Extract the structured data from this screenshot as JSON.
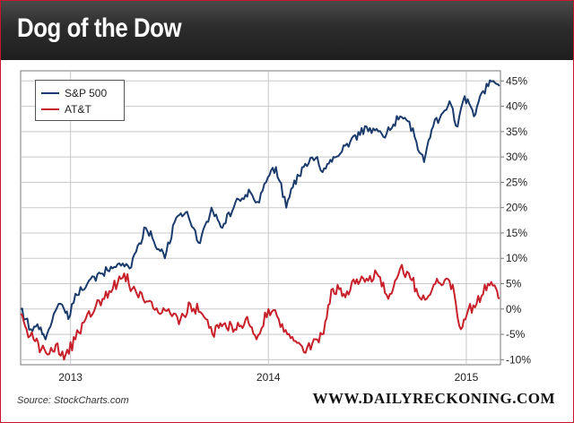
{
  "header": {
    "title": "Dog of the Dow"
  },
  "footer": {
    "source": "Source: StockCharts.com",
    "brand": "WWW.DAILYRECKONING.COM"
  },
  "colors": {
    "sp500": "#1a3b6b",
    "att": "#c8202a",
    "header_bg": "#262626",
    "frame": "#c9162b"
  },
  "chart_data": {
    "type": "line",
    "title": "Dog of the Dow",
    "xlabel": "",
    "ylabel": "",
    "x_ticks": [
      "2013",
      "2014",
      "2015"
    ],
    "y_ticks": [
      "45%",
      "40%",
      "35%",
      "30%",
      "25%",
      "20%",
      "15%",
      "10%",
      "5%",
      "0%",
      "-5%",
      "-10%"
    ],
    "ylim": [
      -11,
      47
    ],
    "xlim": [
      "2012-10-01",
      "2015-03-05"
    ],
    "grid": true,
    "legend_position": "top-left",
    "series": [
      {
        "name": "S&P 500",
        "color": "#1a3b6b",
        "points": [
          [
            "2012-10-01",
            0
          ],
          [
            "2012-10-10",
            -2
          ],
          [
            "2012-10-20",
            -4
          ],
          [
            "2012-11-01",
            -3
          ],
          [
            "2012-11-10",
            -5
          ],
          [
            "2012-11-16",
            -6
          ],
          [
            "2012-12-01",
            -1
          ],
          [
            "2012-12-10",
            1
          ],
          [
            "2012-12-20",
            0
          ],
          [
            "2012-12-28",
            -2
          ],
          [
            "2013-01-10",
            3
          ],
          [
            "2013-02-01",
            5
          ],
          [
            "2013-03-01",
            7
          ],
          [
            "2013-04-01",
            9
          ],
          [
            "2013-04-20",
            8
          ],
          [
            "2013-05-20",
            16
          ],
          [
            "2013-06-01",
            14
          ],
          [
            "2013-06-24",
            10
          ],
          [
            "2013-07-15",
            18
          ],
          [
            "2013-08-01",
            19
          ],
          [
            "2013-08-28",
            13
          ],
          [
            "2013-09-18",
            20
          ],
          [
            "2013-10-08",
            16
          ],
          [
            "2013-11-01",
            21
          ],
          [
            "2013-11-29",
            23
          ],
          [
            "2013-12-15",
            21
          ],
          [
            "2013-12-31",
            26
          ],
          [
            "2014-01-15",
            28
          ],
          [
            "2014-02-03",
            20
          ],
          [
            "2014-02-15",
            24
          ],
          [
            "2014-03-07",
            28
          ],
          [
            "2014-04-01",
            30
          ],
          [
            "2014-04-11",
            27
          ],
          [
            "2014-05-01",
            30
          ],
          [
            "2014-06-01",
            33
          ],
          [
            "2014-07-01",
            36
          ],
          [
            "2014-08-01",
            34
          ],
          [
            "2014-09-01",
            38
          ],
          [
            "2014-09-18",
            37
          ],
          [
            "2014-10-01",
            33
          ],
          [
            "2014-10-15",
            29
          ],
          [
            "2014-11-01",
            36
          ],
          [
            "2014-12-01",
            41
          ],
          [
            "2014-12-16",
            36
          ],
          [
            "2014-12-29",
            42
          ],
          [
            "2015-01-15",
            38
          ],
          [
            "2015-02-01",
            43
          ],
          [
            "2015-02-20",
            45
          ],
          [
            "2015-03-03",
            44
          ]
        ]
      },
      {
        "name": "AT&T",
        "color": "#c8202a",
        "points": [
          [
            "2012-10-01",
            -1
          ],
          [
            "2012-10-12",
            -4
          ],
          [
            "2012-10-25",
            -6
          ],
          [
            "2012-11-08",
            -8
          ],
          [
            "2012-11-20",
            -9
          ],
          [
            "2012-12-05",
            -7
          ],
          [
            "2012-12-20",
            -10
          ],
          [
            "2013-01-10",
            -6
          ],
          [
            "2013-02-01",
            -1
          ],
          [
            "2013-03-01",
            2
          ],
          [
            "2013-03-20",
            4
          ],
          [
            "2013-04-10",
            7
          ],
          [
            "2013-04-25",
            4
          ],
          [
            "2013-05-15",
            2
          ],
          [
            "2013-06-15",
            -1
          ],
          [
            "2013-07-01",
            0
          ],
          [
            "2013-07-20",
            -3
          ],
          [
            "2013-08-10",
            1
          ],
          [
            "2013-09-01",
            -1
          ],
          [
            "2013-09-20",
            -5
          ],
          [
            "2013-10-10",
            -3
          ],
          [
            "2013-10-31",
            -4
          ],
          [
            "2013-11-20",
            -2
          ],
          [
            "2013-12-10",
            -6
          ],
          [
            "2014-01-01",
            0
          ],
          [
            "2014-01-20",
            -2
          ],
          [
            "2014-02-05",
            -5
          ],
          [
            "2014-03-01",
            -7
          ],
          [
            "2014-03-20",
            -8
          ],
          [
            "2014-04-10",
            -5
          ],
          [
            "2014-04-30",
            4
          ],
          [
            "2014-05-20",
            3
          ],
          [
            "2014-06-10",
            5
          ],
          [
            "2014-07-01",
            6
          ],
          [
            "2014-07-20",
            7
          ],
          [
            "2014-08-10",
            2
          ],
          [
            "2014-09-01",
            8
          ],
          [
            "2014-09-20",
            6
          ],
          [
            "2014-10-01",
            4
          ],
          [
            "2014-10-20",
            2
          ],
          [
            "2014-11-05",
            5
          ],
          [
            "2014-11-25",
            6
          ],
          [
            "2014-12-10",
            3
          ],
          [
            "2014-12-22",
            -4
          ],
          [
            "2015-01-05",
            0
          ],
          [
            "2015-01-20",
            1
          ],
          [
            "2015-02-10",
            5
          ],
          [
            "2015-02-25",
            4
          ],
          [
            "2015-03-03",
            2
          ]
        ]
      }
    ]
  }
}
